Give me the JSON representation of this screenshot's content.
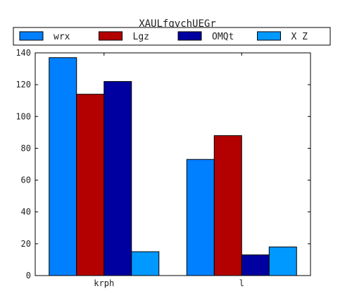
{
  "chart_data": {
    "type": "bar",
    "title": "XAULfgvchUEGr",
    "xlabel": "",
    "ylabel": "",
    "categories": [
      "krph",
      "l"
    ],
    "series": [
      {
        "name": "wrx",
        "color": "#0080ff",
        "values": [
          137,
          73
        ]
      },
      {
        "name": "Lgz",
        "color": "#b30000",
        "values": [
          114,
          88
        ]
      },
      {
        "name": "OMQt",
        "color": "#0000a0",
        "values": [
          122,
          13
        ]
      },
      {
        "name": "X Z",
        "color": "#0099ff",
        "values": [
          15,
          18
        ]
      }
    ],
    "ylim": [
      0,
      140
    ],
    "yticks": [
      0,
      20,
      40,
      60,
      80,
      100,
      120,
      140
    ],
    "grid": false,
    "legend": {
      "placement": "top",
      "columns": 4
    }
  }
}
